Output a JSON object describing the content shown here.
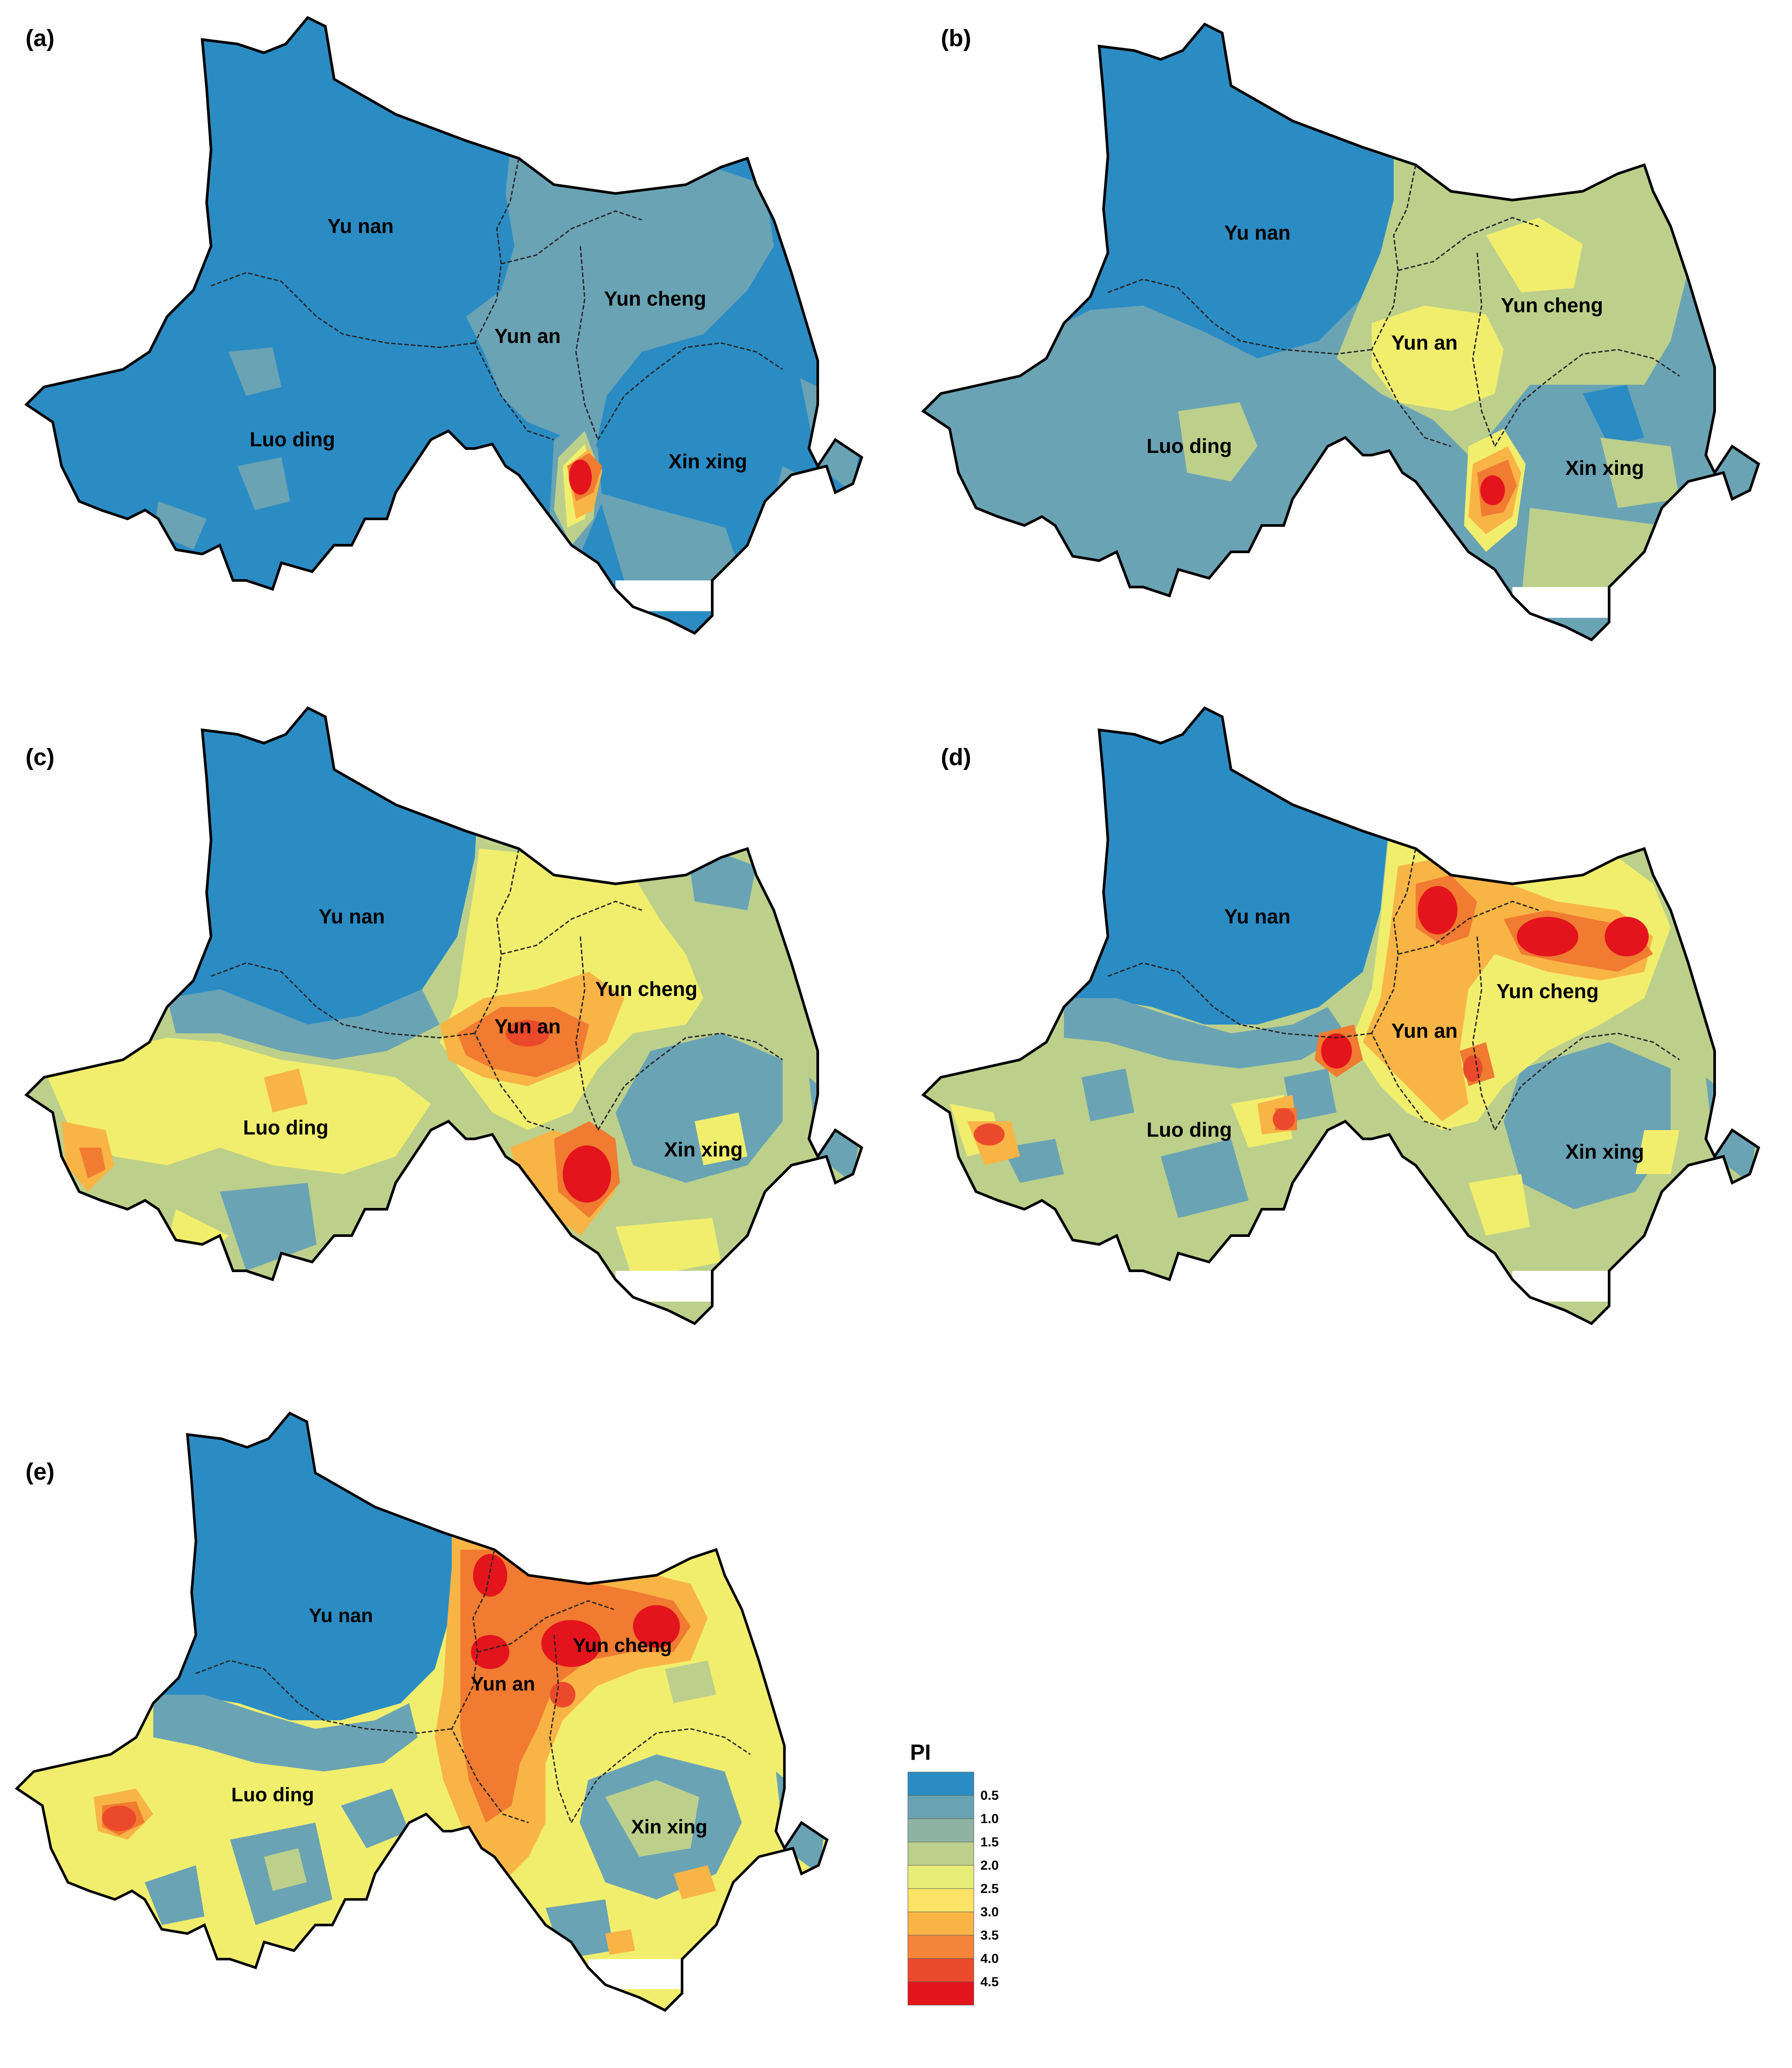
{
  "panels": [
    {
      "label": "(a)",
      "regions": {
        "yu_nan": "Yu nan",
        "yun_cheng": "Yun cheng",
        "yun_an": "Yun an",
        "luo_ding": "Luo ding",
        "xin_xing": "Xin xing"
      }
    },
    {
      "label": "(b)",
      "regions": {
        "yu_nan": "Yu nan",
        "yun_cheng": "Yun cheng",
        "yun_an": "Yun an",
        "luo_ding": "Luo ding",
        "xin_xing": "Xin xing"
      }
    },
    {
      "label": "(c)",
      "regions": {
        "yu_nan": "Yu nan",
        "yun_cheng": "Yun cheng",
        "yun_an": "Yun an",
        "luo_ding": "Luo ding",
        "xin_xing": "Xin xing"
      }
    },
    {
      "label": "(d)",
      "regions": {
        "yu_nan": "Yu nan",
        "yun_cheng": "Yun cheng",
        "yun_an": "Yun an",
        "luo_ding": "Luo ding",
        "xin_xing": "Xin xing"
      }
    },
    {
      "label": "(e)",
      "regions": {
        "yu_nan": "Yu nan",
        "yun_cheng": "Yun cheng",
        "yun_an": "Yun an",
        "luo_ding": "Luo ding",
        "xin_xing": "Xin xing"
      }
    }
  ],
  "legend": {
    "title": "PI",
    "ticks": [
      "0.5",
      "1.0",
      "1.5",
      "2.0",
      "2.5",
      "3.0",
      "3.5",
      "4.0",
      "4.5"
    ],
    "colors": [
      "#2b8cc4",
      "#6aa3b4",
      "#8fb3a3",
      "#bcd08b",
      "#e8ec78",
      "#fbe367",
      "#f9b446",
      "#f5853a",
      "#ea4a2b",
      "#e3141c"
    ]
  },
  "colors": {
    "c0": "#2b8cc4",
    "c1": "#6aa3b4",
    "c2": "#bcd08b",
    "c3": "#f1ee6e",
    "c4": "#f9b446",
    "c5": "#f07b31",
    "c6": "#e3141c"
  }
}
